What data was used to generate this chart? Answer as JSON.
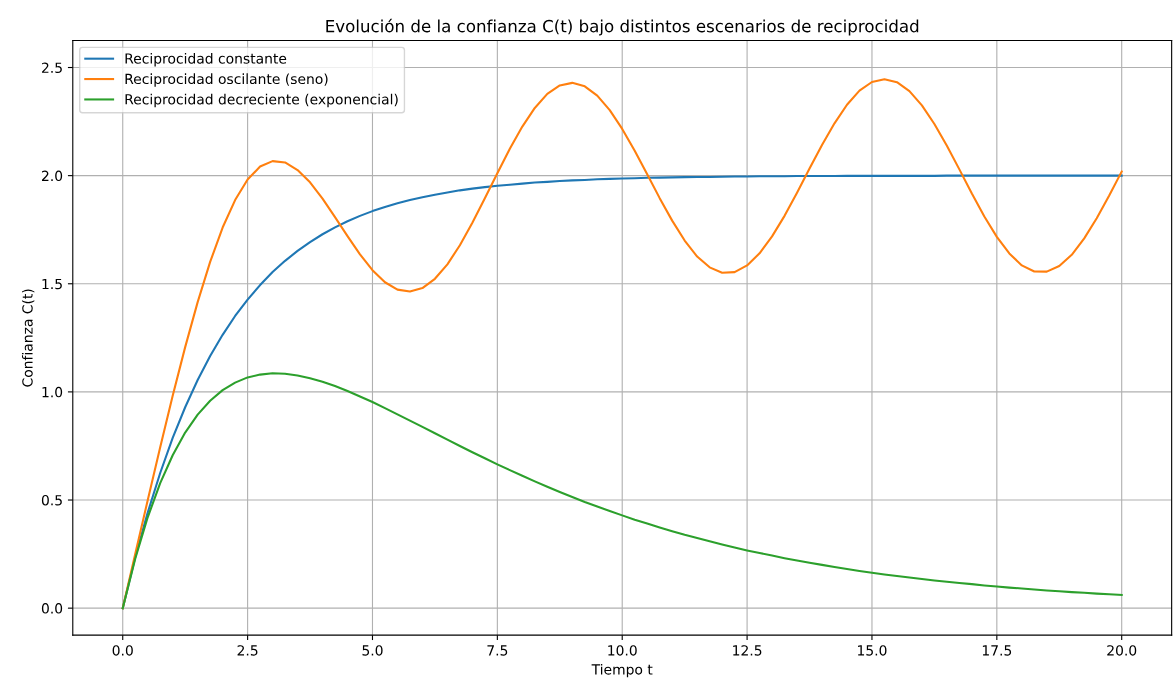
{
  "chart_data": {
    "type": "line",
    "title": "Evolución de la confianza C(t) bajo distintos escenarios de reciprocidad",
    "xlabel": "Tiempo t",
    "ylabel": "Confianza C(t)",
    "x": [
      0,
      0.25,
      0.5,
      0.75,
      1,
      1.25,
      1.5,
      1.75,
      2,
      2.25,
      2.5,
      2.75,
      3,
      3.25,
      3.5,
      3.75,
      4,
      4.25,
      4.5,
      4.75,
      5,
      5.25,
      5.5,
      5.75,
      6,
      6.25,
      6.5,
      6.75,
      7,
      7.25,
      7.5,
      7.75,
      8,
      8.25,
      8.5,
      8.75,
      9,
      9.25,
      9.5,
      9.75,
      10,
      10.25,
      10.5,
      10.75,
      11,
      11.25,
      11.5,
      11.75,
      12,
      12.25,
      12.5,
      12.75,
      13,
      13.25,
      13.5,
      13.75,
      14,
      14.25,
      14.5,
      14.75,
      15,
      15.25,
      15.5,
      15.75,
      16,
      16.25,
      16.5,
      16.75,
      17,
      17.25,
      17.5,
      17.75,
      18,
      18.25,
      18.5,
      18.75,
      19,
      19.25,
      19.5,
      19.75,
      20
    ],
    "series": [
      {
        "name": "Reciprocidad constante",
        "color": "#1f77b4",
        "values": [
          0.0,
          0.235,
          0.442,
          0.625,
          0.787,
          0.929,
          1.055,
          1.166,
          1.264,
          1.351,
          1.427,
          1.494,
          1.554,
          1.606,
          1.652,
          1.693,
          1.729,
          1.761,
          1.789,
          1.814,
          1.836,
          1.855,
          1.872,
          1.887,
          1.9,
          1.912,
          1.922,
          1.932,
          1.94,
          1.947,
          1.953,
          1.958,
          1.963,
          1.968,
          1.971,
          1.975,
          1.978,
          1.98,
          1.983,
          1.985,
          1.987,
          1.988,
          1.99,
          1.991,
          1.992,
          1.993,
          1.994,
          1.994,
          1.995,
          1.996,
          1.996,
          1.997,
          1.997,
          1.997,
          1.998,
          1.998,
          1.998,
          1.998,
          1.999,
          1.999,
          1.999,
          1.999,
          1.999,
          1.999,
          1.999,
          1.999,
          2.0,
          2.0,
          2.0,
          2.0,
          2.0,
          2.0,
          2.0,
          2.0,
          2.0,
          2.0,
          2.0,
          2.0,
          2.0,
          2.0,
          2.0
        ]
      },
      {
        "name": "Reciprocidad oscilante (seno)",
        "color": "#ff7f0e",
        "values": [
          0.0,
          0.25,
          0.499,
          0.744,
          0.982,
          1.207,
          1.415,
          1.601,
          1.76,
          1.887,
          1.982,
          2.042,
          2.067,
          2.061,
          2.026,
          1.969,
          1.894,
          1.808,
          1.72,
          1.636,
          1.563,
          1.507,
          1.473,
          1.464,
          1.48,
          1.523,
          1.59,
          1.678,
          1.782,
          1.895,
          2.011,
          2.124,
          2.227,
          2.313,
          2.378,
          2.417,
          2.429,
          2.413,
          2.37,
          2.303,
          2.216,
          2.115,
          2.006,
          1.896,
          1.792,
          1.7,
          1.626,
          1.576,
          1.551,
          1.554,
          1.585,
          1.641,
          1.719,
          1.814,
          1.921,
          2.033,
          2.142,
          2.242,
          2.328,
          2.393,
          2.433,
          2.446,
          2.432,
          2.391,
          2.325,
          2.239,
          2.138,
          2.029,
          1.917,
          1.811,
          1.717,
          1.64,
          1.585,
          1.557,
          1.556,
          1.582,
          1.634,
          1.71,
          1.803,
          1.908,
          2.019
        ]
      },
      {
        "name": "Reciprocidad decreciente (exponencial)",
        "color": "#2ca02c",
        "values": [
          0.0,
          0.229,
          0.42,
          0.578,
          0.707,
          0.812,
          0.895,
          0.959,
          1.008,
          1.043,
          1.067,
          1.08,
          1.086,
          1.084,
          1.076,
          1.063,
          1.047,
          1.027,
          1.004,
          0.979,
          0.953,
          0.925,
          0.896,
          0.867,
          0.838,
          0.809,
          0.779,
          0.75,
          0.721,
          0.693,
          0.665,
          0.638,
          0.612,
          0.586,
          0.561,
          0.537,
          0.514,
          0.491,
          0.47,
          0.449,
          0.429,
          0.409,
          0.391,
          0.373,
          0.356,
          0.339,
          0.324,
          0.309,
          0.294,
          0.28,
          0.267,
          0.255,
          0.243,
          0.231,
          0.22,
          0.21,
          0.2,
          0.19,
          0.181,
          0.172,
          0.164,
          0.156,
          0.149,
          0.142,
          0.135,
          0.128,
          0.122,
          0.116,
          0.111,
          0.105,
          0.1,
          0.095,
          0.091,
          0.086,
          0.082,
          0.078,
          0.074,
          0.071,
          0.067,
          0.064,
          0.061
        ]
      }
    ],
    "xlim": [
      -1,
      21
    ],
    "ylim": [
      -0.125,
      2.625
    ],
    "xticks": [
      {
        "value": 0,
        "label": "0.0"
      },
      2.5,
      {
        "value": 5,
        "label": "5.0"
      },
      7.5,
      {
        "value": 10,
        "label": "10.0"
      },
      12.5,
      {
        "value": 15,
        "label": "15.0"
      },
      17.5,
      {
        "value": 20,
        "label": "20.0"
      }
    ],
    "yticks": [
      {
        "value": 0,
        "label": "0.0"
      },
      0.5,
      {
        "value": 1,
        "label": "1.0"
      },
      1.5,
      {
        "value": 2,
        "label": "2.0"
      },
      2.5
    ],
    "grid": true,
    "legend": "top left"
  }
}
